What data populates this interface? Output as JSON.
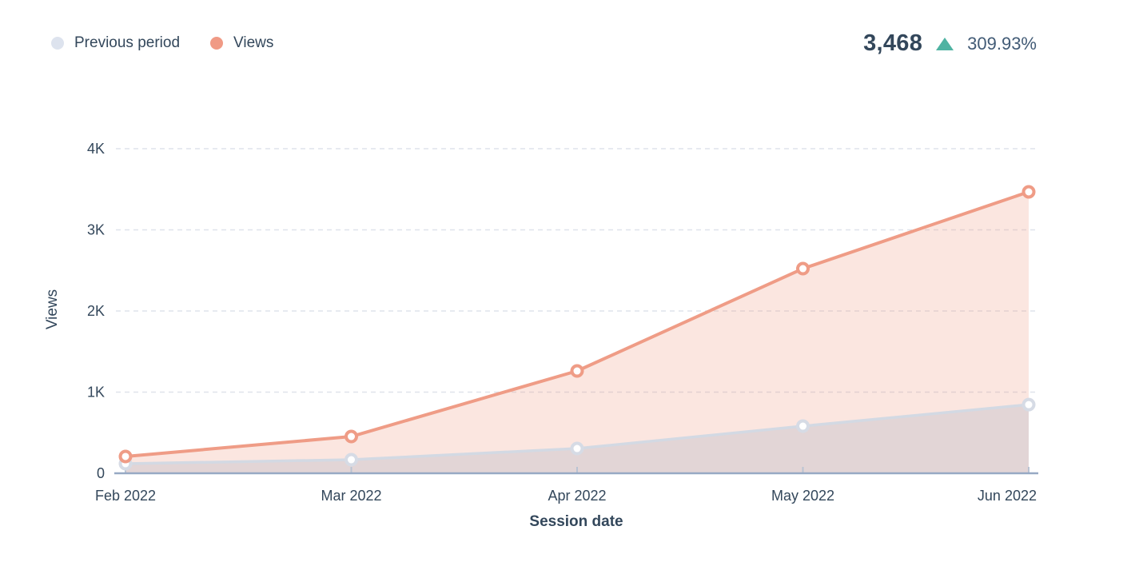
{
  "legend": {
    "items": [
      {
        "label": "Previous period",
        "color": "#dde3ee"
      },
      {
        "label": "Views",
        "color": "#f09a85"
      }
    ]
  },
  "summary": {
    "value": "3,468",
    "delta": "309.93%",
    "delta_direction": "up",
    "delta_color": "#4fb3a2",
    "value_color": "#33475b"
  },
  "chart_data": {
    "type": "area",
    "title": "",
    "xlabel": "Session date",
    "ylabel": "Views",
    "categories": [
      "Feb 2022",
      "Mar 2022",
      "Apr 2022",
      "May 2022",
      "Jun 2022"
    ],
    "series": [
      {
        "name": "Previous period",
        "values": [
          118,
          167,
          305,
          581,
          846
        ],
        "line_color": "#d3d9e3",
        "fill_color": "rgba(160,170,190,0.28)",
        "marker_stroke": "#d6dbe5"
      },
      {
        "name": "Views",
        "values": [
          207,
          453,
          1261,
          2522,
          3468
        ],
        "line_color": "#ef9c86",
        "fill_color": "rgba(240,154,133,0.25)",
        "marker_stroke": "#ef9c86"
      }
    ],
    "ylim": [
      0,
      4000
    ],
    "yticks": [
      0,
      1000,
      2000,
      3000,
      4000
    ],
    "ytick_labels": [
      "0",
      "1K",
      "2K",
      "3K",
      "4K"
    ],
    "grid": "horizontal-dashed",
    "grid_color": "#dfe3eb",
    "axis_color": "#97a9c4",
    "tick_color": "#b9c3d3",
    "legend_position": "top-left"
  }
}
